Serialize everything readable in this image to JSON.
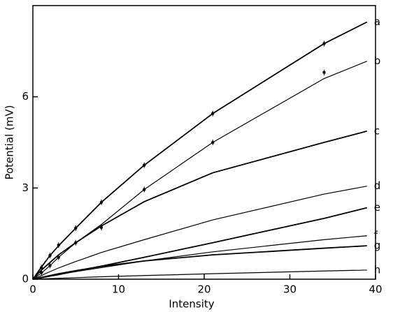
{
  "chart_data": {
    "type": "line",
    "x_label": "Intensity",
    "y_label": "Potential (mV)",
    "xlim": [
      0,
      40
    ],
    "ylim": [
      0,
      9
    ],
    "xticks": [
      0,
      10,
      20,
      30,
      40
    ],
    "yticks": [
      0,
      3,
      6
    ],
    "color": "#000000",
    "x": [
      0,
      1,
      2,
      3,
      5,
      8,
      13,
      21,
      34,
      39
    ],
    "series": [
      {
        "name": "a",
        "values": [
          0,
          0.4,
          0.78,
          1.1,
          1.68,
          2.53,
          3.75,
          5.45,
          7.75,
          8.46
        ],
        "marker_x": [
          1,
          2,
          3,
          5,
          8,
          13,
          21,
          34
        ],
        "marker_values": [
          0.38,
          0.78,
          1.12,
          1.68,
          2.53,
          3.75,
          5.45,
          7.75
        ]
      },
      {
        "name": "b",
        "values": [
          0,
          0.2,
          0.45,
          0.72,
          1.2,
          1.8,
          2.95,
          4.5,
          6.6,
          7.17
        ],
        "marker_x": [
          1,
          2,
          3,
          5,
          8,
          13,
          21,
          34
        ],
        "marker_values": [
          0.22,
          0.45,
          0.72,
          1.2,
          1.7,
          2.95,
          4.5,
          6.8
        ]
      },
      {
        "name": "c",
        "values": [
          0,
          0.3,
          0.55,
          0.8,
          1.2,
          1.75,
          2.55,
          3.5,
          4.5,
          4.87
        ]
      },
      {
        "name": "d",
        "values": [
          0,
          0.12,
          0.25,
          0.37,
          0.58,
          0.88,
          1.3,
          1.95,
          2.8,
          3.06
        ]
      },
      {
        "name": "e",
        "values": [
          0,
          0.05,
          0.1,
          0.15,
          0.27,
          0.43,
          0.72,
          1.2,
          2.0,
          2.35
        ]
      },
      {
        "name": "f",
        "values": [
          0,
          0.05,
          0.1,
          0.15,
          0.25,
          0.38,
          0.6,
          0.9,
          1.3,
          1.43
        ]
      },
      {
        "name": "g",
        "values": [
          0,
          0.06,
          0.12,
          0.18,
          0.28,
          0.42,
          0.6,
          0.8,
          1.02,
          1.1
        ]
      },
      {
        "name": "h",
        "values": [
          0,
          0.01,
          0.02,
          0.03,
          0.05,
          0.08,
          0.12,
          0.18,
          0.27,
          0.3
        ]
      }
    ]
  }
}
